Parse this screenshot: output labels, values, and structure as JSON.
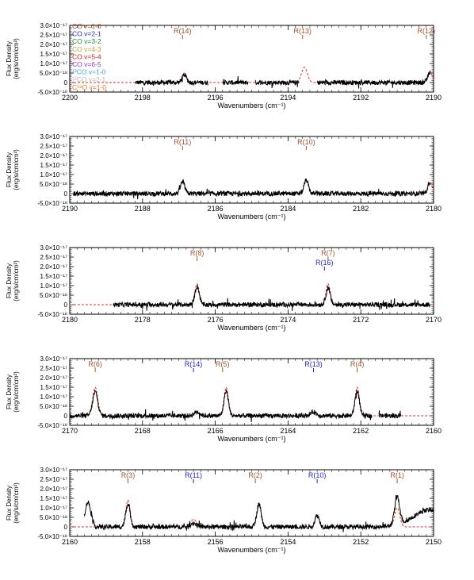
{
  "figure": {
    "ylabel_lines": [
      "Flux Density",
      "(erg/s/cm/cm²)"
    ],
    "xlabel": "Wavenumbers (cm⁻¹)",
    "ytick_labels": [
      "3.0×10⁻¹⁷",
      "2.5×10⁻¹⁷",
      "2.0×10⁻¹⁷",
      "1.5×10⁻¹⁷",
      "1.0×10⁻¹⁷",
      "5.0×10⁻¹⁸",
      "0",
      "-5.0×10⁻¹⁸"
    ],
    "legend": [
      {
        "label": "CO v=1-0",
        "color": "#a0522d"
      },
      {
        "label": "CO v=2-1",
        "color": "#1f1fd0"
      },
      {
        "label": "CO v=3-2",
        "color": "#1e8a2e"
      },
      {
        "label": "CO v=4-3",
        "color": "#c9a227"
      },
      {
        "label": "CO v=5-4",
        "color": "#e01b1b"
      },
      {
        "label": "CO v=6-5",
        "color": "#9b35c9"
      },
      {
        "label": "¹³CO v=1-0",
        "color": "#3aa6d9"
      },
      {
        "label": "¹³CO v=2-1",
        "color": "#b8b8b8"
      },
      {
        "label": "C¹⁸O v=1-0",
        "color": "#e8731c"
      }
    ],
    "colors": {
      "observed": "#000000",
      "model": "#e0301e",
      "co_v10": "#a0522d",
      "co_v21": "#1f1fd0"
    }
  },
  "chart_data": [
    {
      "type": "line",
      "xlim": [
        2200,
        2190
      ],
      "ylim": [
        -5e-18,
        3e-17
      ],
      "xticks": [
        2200,
        2198,
        2196,
        2194,
        2192,
        2190
      ],
      "series": [
        {
          "role": "observed",
          "segments": [
            [
              2198.2,
              2196.2
            ],
            [
              2195.8,
              2195.1
            ],
            [
              2194.9,
              2193.7
            ],
            [
              2193.2,
              2190.1
            ]
          ],
          "features": [
            {
              "x": 2196.85,
              "peak": 4e-18,
              "width": 0.06
            },
            {
              "x": 2190.1,
              "peak": 5e-18,
              "width": 0.06
            }
          ]
        },
        {
          "role": "model",
          "range": [
            2200,
            2190
          ],
          "features": [
            {
              "x": 2196.85,
              "peak": 5e-18,
              "width": 0.06
            },
            {
              "x": 2193.55,
              "peak": 8e-18,
              "width": 0.08
            },
            {
              "x": 2190.1,
              "peak": 6e-18,
              "width": 0.06
            }
          ]
        }
      ],
      "line_markers": [
        {
          "label": "R(14)",
          "x": 2196.9,
          "color": "co_v10"
        },
        {
          "label": "R(13)",
          "x": 2193.6,
          "color": "co_v10"
        },
        {
          "label": "R(12)",
          "x": 2190.2,
          "color": "co_v10"
        }
      ]
    },
    {
      "type": "line",
      "xlim": [
        2190,
        2180
      ],
      "ylim": [
        -5e-18,
        3e-17
      ],
      "xticks": [
        2190,
        2188,
        2186,
        2184,
        2182,
        2180
      ],
      "series": [
        {
          "role": "observed",
          "segments": [
            [
              2189.9,
              2180.1
            ]
          ],
          "features": [
            {
              "x": 2186.9,
              "peak": 6e-18,
              "width": 0.06
            },
            {
              "x": 2183.5,
              "peak": 7e-18,
              "width": 0.06
            },
            {
              "x": 2180.1,
              "peak": 6e-18,
              "width": 0.06
            }
          ]
        },
        {
          "role": "model",
          "range": [
            2190,
            2180
          ],
          "features": [
            {
              "x": 2186.9,
              "peak": 6.5e-18,
              "width": 0.06
            },
            {
              "x": 2183.5,
              "peak": 7e-18,
              "width": 0.06
            },
            {
              "x": 2180.1,
              "peak": 6e-18,
              "width": 0.06
            }
          ]
        }
      ],
      "line_markers": [
        {
          "label": "R(11)",
          "x": 2186.9,
          "color": "co_v10"
        },
        {
          "label": "R(10)",
          "x": 2183.5,
          "color": "co_v10"
        }
      ]
    },
    {
      "type": "line",
      "xlim": [
        2180,
        2170
      ],
      "ylim": [
        -5e-18,
        3e-17
      ],
      "xticks": [
        2180,
        2178,
        2176,
        2174,
        2172,
        2170
      ],
      "series": [
        {
          "role": "observed",
          "segments": [
            [
              2178.8,
              2170.1
            ]
          ],
          "features": [
            {
              "x": 2176.5,
              "peak": 9.5e-18,
              "width": 0.06
            },
            {
              "x": 2172.9,
              "peak": 8.5e-18,
              "width": 0.06
            }
          ]
        },
        {
          "role": "model",
          "range": [
            2180,
            2170
          ],
          "features": [
            {
              "x": 2176.5,
              "peak": 1.1e-17,
              "width": 0.06
            },
            {
              "x": 2172.9,
              "peak": 1.1e-17,
              "width": 0.06
            }
          ]
        }
      ],
      "line_markers": [
        {
          "label": "R(8)",
          "x": 2176.5,
          "color": "co_v10"
        },
        {
          "label": "R(7)",
          "x": 2172.9,
          "color": "co_v10"
        },
        {
          "label": "R(16)",
          "x": 2173.0,
          "color": "co_v21",
          "row": 2
        }
      ]
    },
    {
      "type": "line",
      "xlim": [
        2170,
        2160
      ],
      "ylim": [
        -5e-18,
        3e-17
      ],
      "xticks": [
        2170,
        2168,
        2166,
        2164,
        2162,
        2160
      ],
      "series": [
        {
          "role": "observed",
          "segments": [
            [
              2170.0,
              2161.7
            ],
            [
              2161.5,
              2160.9
            ]
          ],
          "features": [
            {
              "x": 2169.3,
              "peak": 1.25e-17,
              "width": 0.07
            },
            {
              "x": 2166.5,
              "peak": 2e-18,
              "width": 0.08
            },
            {
              "x": 2165.7,
              "peak": 1.3e-17,
              "width": 0.06
            },
            {
              "x": 2163.3,
              "peak": 2e-18,
              "width": 0.08
            },
            {
              "x": 2162.1,
              "peak": 1.3e-17,
              "width": 0.06
            }
          ]
        },
        {
          "role": "model",
          "range": [
            2170,
            2160
          ],
          "features": [
            {
              "x": 2169.3,
              "peak": 1.5e-17,
              "width": 0.07
            },
            {
              "x": 2166.5,
              "peak": 2e-18,
              "width": 0.08
            },
            {
              "x": 2165.7,
              "peak": 1.5e-17,
              "width": 0.06
            },
            {
              "x": 2163.3,
              "peak": 2e-18,
              "width": 0.08
            },
            {
              "x": 2162.1,
              "peak": 1.5e-17,
              "width": 0.06
            }
          ]
        }
      ],
      "line_markers": [
        {
          "label": "R(6)",
          "x": 2169.3,
          "color": "co_v10"
        },
        {
          "label": "R(14)",
          "x": 2166.6,
          "color": "co_v21"
        },
        {
          "label": "R(5)",
          "x": 2165.8,
          "color": "co_v10"
        },
        {
          "label": "R(13)",
          "x": 2163.3,
          "color": "co_v21"
        },
        {
          "label": "R(4)",
          "x": 2162.1,
          "color": "co_v10"
        }
      ]
    },
    {
      "type": "line",
      "xlim": [
        2160,
        2150
      ],
      "ylim": [
        -5e-18,
        3e-17
      ],
      "xticks": [
        2160,
        2158,
        2156,
        2154,
        2152,
        2150
      ],
      "series": [
        {
          "role": "observed",
          "segments": [
            [
              2159.6,
              2150.0
            ]
          ],
          "features": [
            {
              "x": 2159.5,
              "peak": 1.3e-17,
              "width": 0.08
            },
            {
              "x": 2158.4,
              "peak": 1.2e-17,
              "width": 0.06
            },
            {
              "x": 2156.6,
              "peak": 2e-18,
              "width": 0.08
            },
            {
              "x": 2154.8,
              "peak": 1.2e-17,
              "width": 0.06
            },
            {
              "x": 2153.2,
              "peak": 6e-18,
              "width": 0.06
            },
            {
              "x": 2151.0,
              "peak": 1.45e-17,
              "width": 0.07
            },
            {
              "x": 2150.1,
              "peak": 9e-18,
              "width": 0.45
            }
          ]
        },
        {
          "role": "model",
          "range": [
            2160,
            2150
          ],
          "features": [
            {
              "x": 2158.4,
              "peak": 1.4e-17,
              "width": 0.06
            },
            {
              "x": 2156.6,
              "peak": 4e-18,
              "width": 0.08
            },
            {
              "x": 2154.8,
              "peak": 1.2e-17,
              "width": 0.06
            },
            {
              "x": 2153.2,
              "peak": 6e-18,
              "width": 0.06
            },
            {
              "x": 2151.0,
              "peak": 1e-17,
              "width": 0.07
            }
          ]
        }
      ],
      "line_markers": [
        {
          "label": "R(3)",
          "x": 2158.4,
          "color": "co_v10"
        },
        {
          "label": "R(11)",
          "x": 2156.6,
          "color": "co_v21"
        },
        {
          "label": "R(2)",
          "x": 2154.9,
          "color": "co_v10"
        },
        {
          "label": "R(10)",
          "x": 2153.2,
          "color": "co_v21"
        },
        {
          "label": "R(1)",
          "x": 2151.0,
          "color": "co_v10"
        }
      ]
    }
  ]
}
